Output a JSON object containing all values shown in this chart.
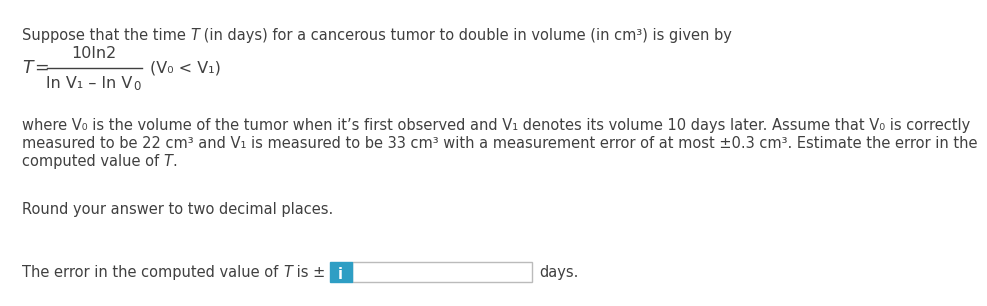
{
  "bg_color": "#ffffff",
  "text_color": "#404040",
  "font_size_body": 10.5,
  "font_size_formula": 11.5,
  "input_box_color": "#2e9ec4",
  "line1a": "Suppose that the time ",
  "line1b": "T",
  "line1c": " (in days) for a cancerous tumor to double in volume (in cm³) is given by",
  "num_text": "10ln2",
  "T_eq": "T",
  "denom_text": "ln V₁ – ln V",
  "denom_sub": "0",
  "cond_text": "(V₀ < V₁)",
  "para1": "where V₀ is the volume of the tumor when it’s first observed and V₁ denotes its volume 10 days later. Assume that V₀ is correctly",
  "para2": "measured to be 22 cm³ and V₁ is measured to be 33 cm³ with a measurement error of at most ±0.3 cm³. Estimate the error in the",
  "para3a": "computed value of ",
  "para3b": "T",
  "para3c": ".",
  "round_text": "Round your answer to two decimal places.",
  "ans1": "The error in the computed value of ",
  "ans2": "T",
  "ans3": " is ± ",
  "ans4": "days."
}
